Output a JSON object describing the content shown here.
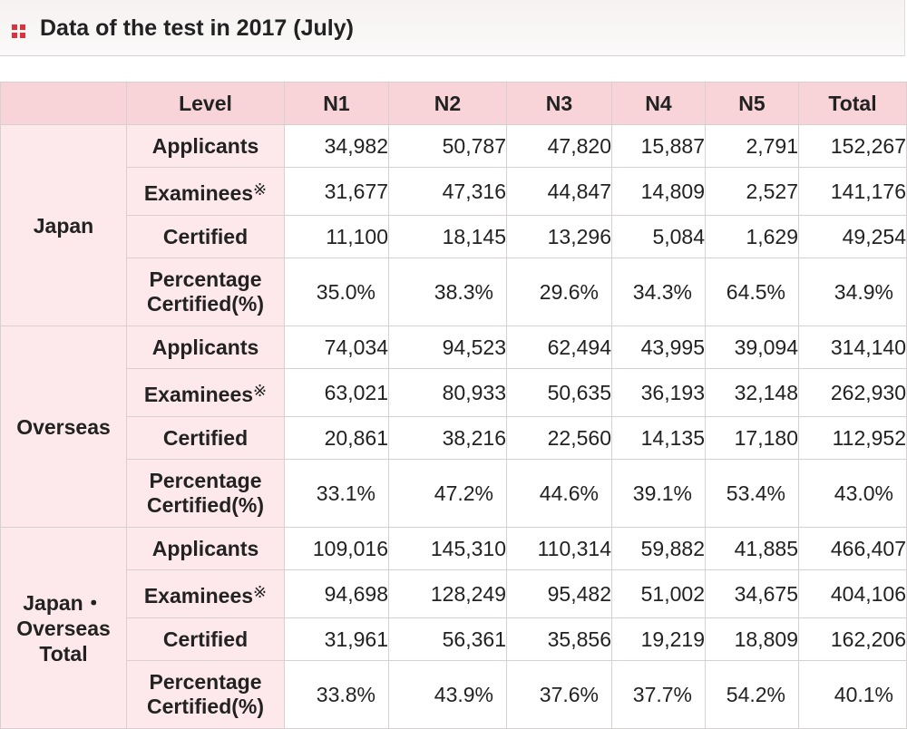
{
  "title": "Data of the test in 2017 (July)",
  "colors": {
    "accent": "#d9343e",
    "header_bg": "#f8d4d8",
    "label_bg": "#fde9ec"
  },
  "header": {
    "level": "Level",
    "levels": [
      "N1",
      "N2",
      "N3",
      "N4",
      "N5",
      "Total"
    ]
  },
  "row_labels": {
    "applicants": "Applicants",
    "examinees": "Examinees",
    "examinees_mark": "※",
    "certified": "Certified",
    "percentage_line1": "Percentage",
    "percentage_line2": "Certified(%)"
  },
  "regions": [
    {
      "name_lines": [
        "Japan"
      ],
      "applicants": [
        "34,982",
        "50,787",
        "47,820",
        "15,887",
        "2,791",
        "152,267"
      ],
      "examinees": [
        "31,677",
        "47,316",
        "44,847",
        "14,809",
        "2,527",
        "141,176"
      ],
      "certified": [
        "11,100",
        "18,145",
        "13,296",
        "5,084",
        "1,629",
        "49,254"
      ],
      "percentage": [
        "35.0%",
        "38.3%",
        "29.6%",
        "34.3%",
        "64.5%",
        "34.9%"
      ]
    },
    {
      "name_lines": [
        "Overseas"
      ],
      "applicants": [
        "74,034",
        "94,523",
        "62,494",
        "43,995",
        "39,094",
        "314,140"
      ],
      "examinees": [
        "63,021",
        "80,933",
        "50,635",
        "36,193",
        "32,148",
        "262,930"
      ],
      "certified": [
        "20,861",
        "38,216",
        "22,560",
        "14,135",
        "17,180",
        "112,952"
      ],
      "percentage": [
        "33.1%",
        "47.2%",
        "44.6%",
        "39.1%",
        "53.4%",
        "43.0%"
      ]
    },
    {
      "name_lines": [
        "Japan・",
        "Overseas",
        "Total"
      ],
      "applicants": [
        "109,016",
        "145,310",
        "110,314",
        "59,882",
        "41,885",
        "466,407"
      ],
      "examinees": [
        "94,698",
        "128,249",
        "95,482",
        "51,002",
        "34,675",
        "404,106"
      ],
      "certified": [
        "31,961",
        "56,361",
        "35,856",
        "19,219",
        "18,809",
        "162,206"
      ],
      "percentage": [
        "33.8%",
        "43.9%",
        "37.6%",
        "37.7%",
        "54.2%",
        "40.1%"
      ]
    }
  ]
}
